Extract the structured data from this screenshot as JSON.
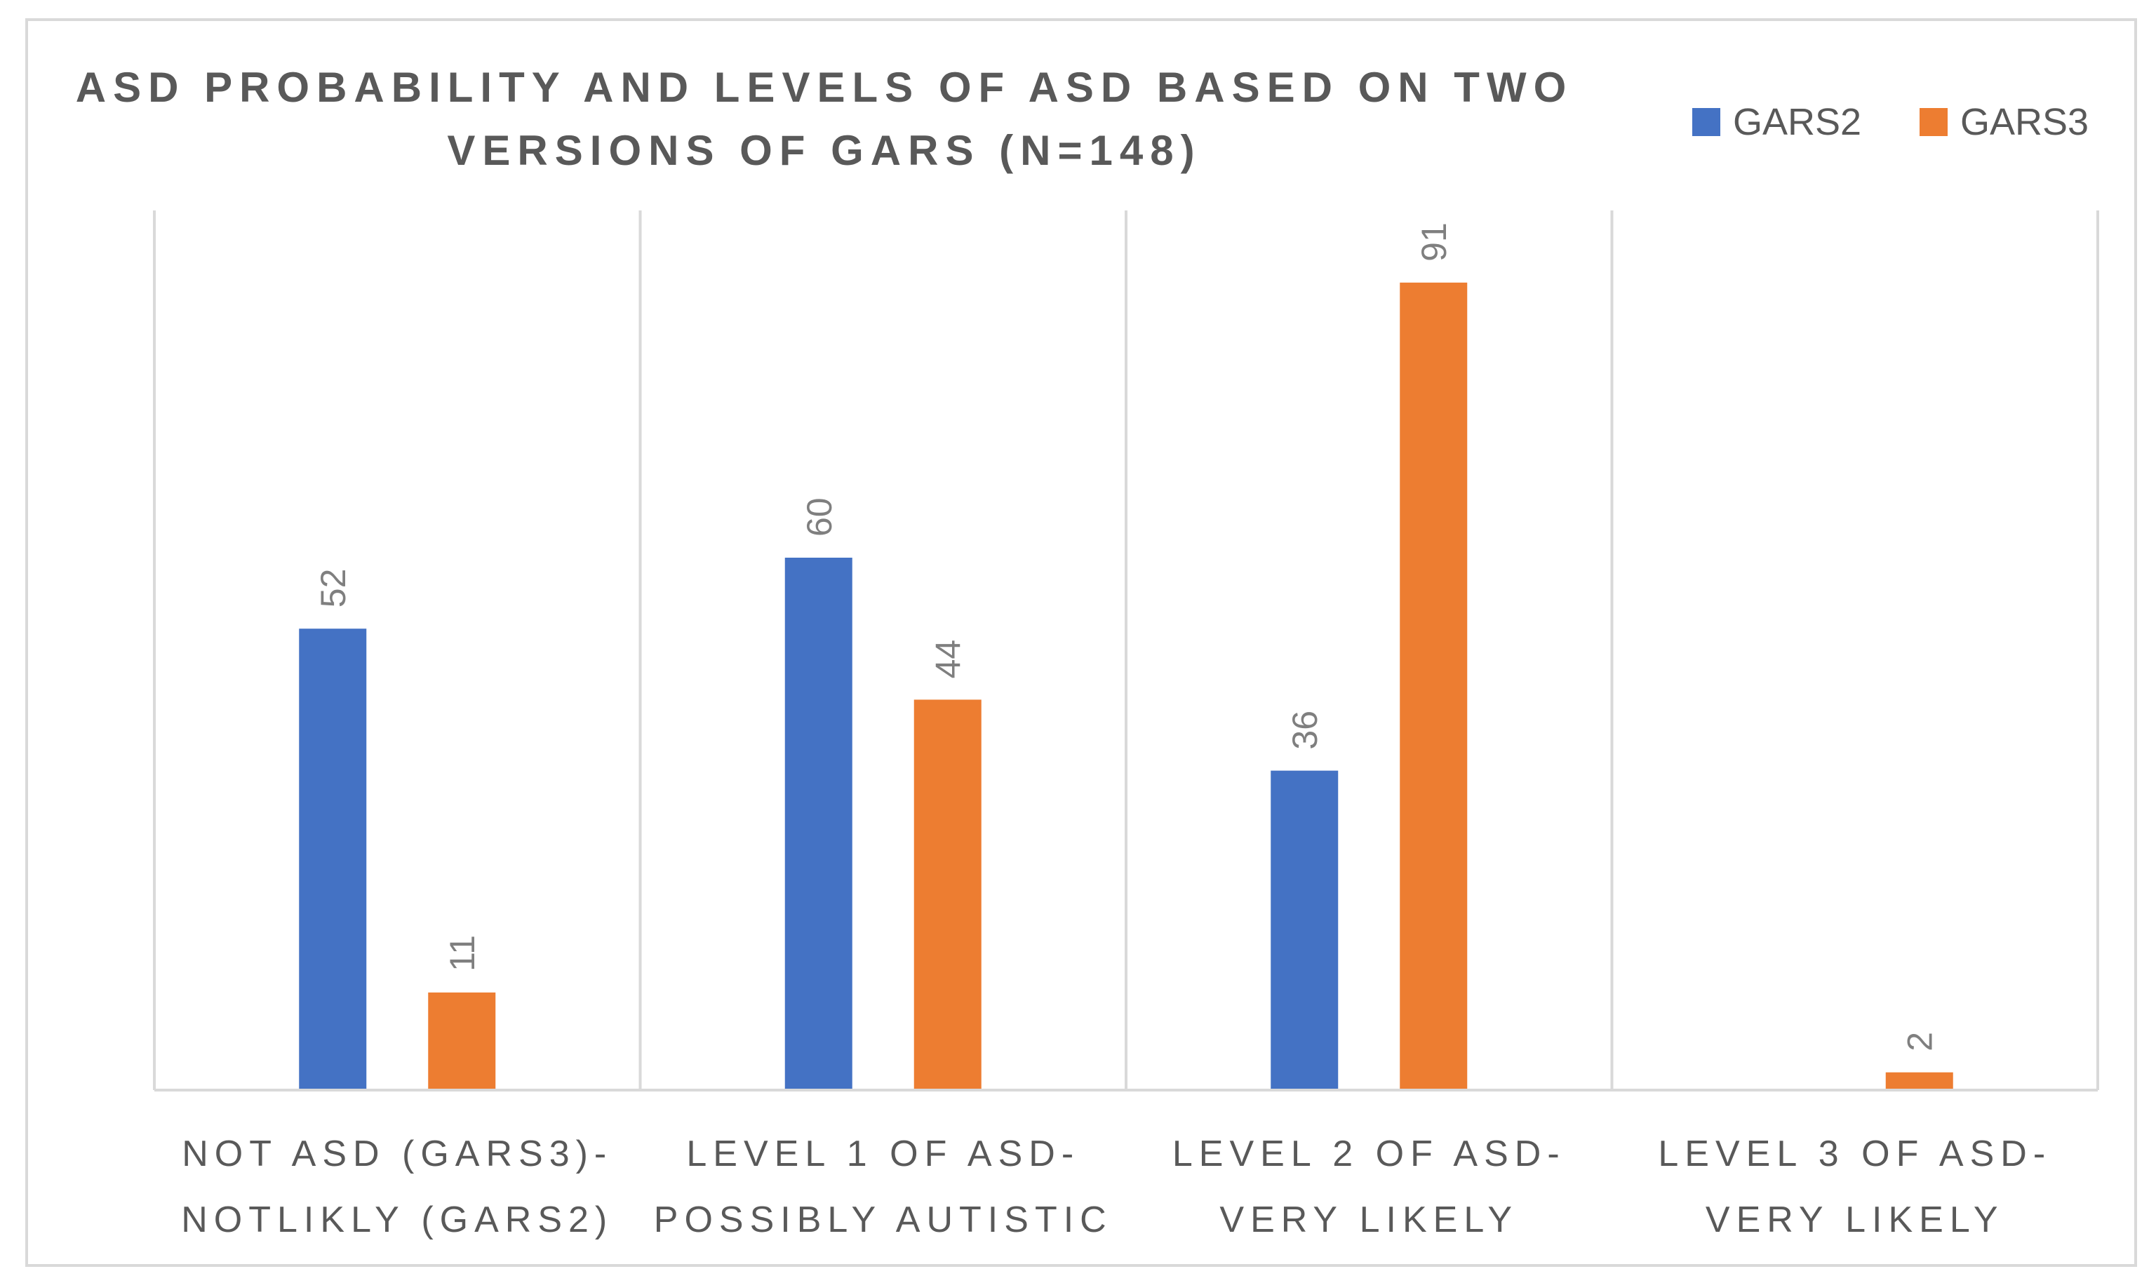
{
  "chart_data": {
    "type": "bar",
    "title_lines": [
      "ASD PROBABILITY AND LEVELS OF ASD BASED ON TWO",
      "VERSIONS OF GARS (N=148)"
    ],
    "categories": [
      [
        "NOT ASD (GARS3)-",
        "NOTLIKLY (GARS2)"
      ],
      [
        "LEVEL 1 OF ASD-",
        "POSSIBLY AUTISTIC"
      ],
      [
        "LEVEL 2 OF ASD-",
        "VERY LIKELY"
      ],
      [
        "LEVEL 3 OF ASD-",
        "VERY LIKELY"
      ]
    ],
    "series": [
      {
        "name": "GARS2",
        "color": "#4472c4",
        "values": [
          52,
          60,
          36,
          null
        ]
      },
      {
        "name": "GARS3",
        "color": "#ed7d31",
        "values": [
          11,
          44,
          91,
          2
        ]
      }
    ],
    "ylim": [
      0,
      100
    ],
    "xlabel": "",
    "ylabel": "",
    "legend_position": "top-right",
    "grid": "vertical-category-separators"
  }
}
